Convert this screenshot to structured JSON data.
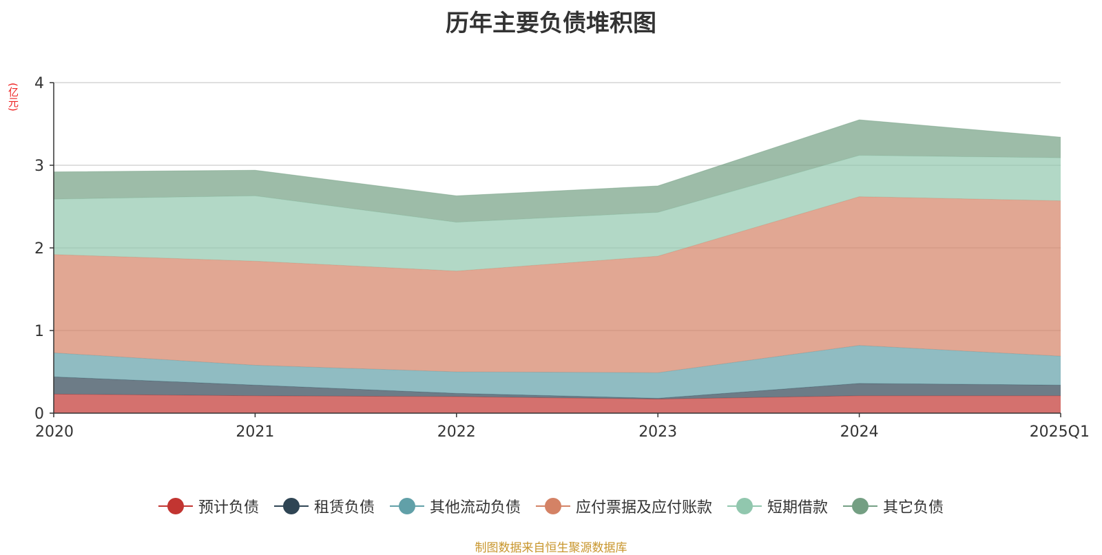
{
  "chart_data": {
    "type": "area",
    "stacked": true,
    "title": "历年主要负债堆积图",
    "unit_label": "(亿元)",
    "categories": [
      "2020",
      "2021",
      "2022",
      "2023",
      "2024",
      "2025Q1"
    ],
    "y_ticks": [
      "0",
      "1",
      "2",
      "3",
      "4"
    ],
    "ylim": [
      0,
      4
    ],
    "grid": true,
    "legend_position": "bottom",
    "series": [
      {
        "name": "预计负债",
        "color": "#c23531",
        "values": [
          0.23,
          0.21,
          0.2,
          0.17,
          0.21,
          0.21
        ]
      },
      {
        "name": "租赁负债",
        "color": "#2f4554",
        "values": [
          0.21,
          0.13,
          0.04,
          0.01,
          0.15,
          0.13
        ]
      },
      {
        "name": "其他流动负债",
        "color": "#61a0a8",
        "values": [
          0.29,
          0.24,
          0.26,
          0.31,
          0.46,
          0.35
        ]
      },
      {
        "name": "应付票据及应付账款",
        "color": "#d48265",
        "values": [
          1.19,
          1.26,
          1.22,
          1.41,
          1.8,
          1.88
        ]
      },
      {
        "name": "短期借款",
        "color": "#91c7ae",
        "values": [
          0.67,
          0.79,
          0.59,
          0.53,
          0.5,
          0.52
        ]
      },
      {
        "name": "其它负债",
        "color": "#749f83",
        "values": [
          0.33,
          0.31,
          0.32,
          0.32,
          0.43,
          0.25
        ]
      }
    ]
  },
  "source_note": "制图数据来自恒生聚源数据库"
}
